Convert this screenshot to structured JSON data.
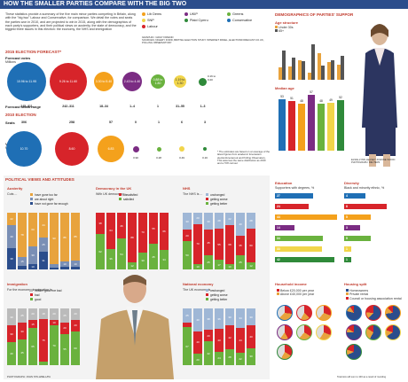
{
  "header": {
    "title": "HOW THE SMALLER PARTIES COMPARE WITH THE BIG TWO"
  },
  "intro": "These statistics provide a summary of the five main minor parties competing in Britain, along with the \"big two\" Labour and Conservative, for comparison. We detail the votes and seats the parties won in 2010, and are projected to win in 2015, along with the demographics of each party's supporters, and their political views on austerity, the state of democracy, and the biggest three issues in this election: the economy, the NHS and immigration",
  "legend": {
    "parties": [
      {
        "name": "Lib Dems",
        "color": "#f4a11c"
      },
      {
        "name": "UKIP",
        "color": "#7b2c83"
      },
      {
        "name": "Greens",
        "color": "#6ab23e"
      },
      {
        "name": "SNP",
        "color": "#f1d54a"
      },
      {
        "name": "Plaid Cymru",
        "color": "#2f8a3a"
      },
      {
        "name": "Conservative",
        "color": "#1f6fb5"
      },
      {
        "name": "Labour",
        "color": "#d7242a"
      }
    ],
    "graphic": "GRAPHIC: GRAY FRIEND",
    "sources": "SOURCES: NIGERY FORD, BRITISH ELECTION STUDY INTERNET PANEL, ELECTIONFORECAST.CO.UK, POLLING OBSERVATORY"
  },
  "forecast": {
    "heading": "2015 ELECTION FORECAST*",
    "votes_label": "Forecast votes",
    "votes_unit": "Millions",
    "seats_label": "Forecast seats range",
    "circles": [
      {
        "text": "10.96 to 11.95",
        "color": "#1f6fb5"
      },
      {
        "text": "9.26 to 11.60",
        "color": "#d7242a"
      },
      {
        "text": "3.30 to 5.40",
        "color": "#f4a11c"
      },
      {
        "text": "2.43 to 4.40",
        "color": "#7b2c83"
      },
      {
        "text": "0.88 to 1.80",
        "color": "#6ab23e"
      },
      {
        "text": "1.19 to 1.30",
        "color": "#f1d54a"
      },
      {
        "text": "0.16 to 0.20",
        "color": "#2f8a3a"
      }
    ],
    "seats": [
      "245–311",
      "242–311",
      "18–34",
      "1–4",
      "1",
      "31–55",
      "1–3"
    ]
  },
  "election2010": {
    "heading": "2010 ELECTION",
    "seats_label": "Seats",
    "votes_label": "Votes",
    "votes_unit": "Millions",
    "seats": [
      "306",
      "258",
      "57",
      "0",
      "1",
      "6",
      "3"
    ],
    "circles": [
      {
        "text": "10.70",
        "color": "#1f6fb5"
      },
      {
        "text": "8.60",
        "color": "#d7242a"
      },
      {
        "text": "6.83",
        "color": "#f4a11c"
      },
      {
        "text": "0.90",
        "color": "#7b2c83"
      },
      {
        "text": "0.28",
        "color": "#6ab23e"
      },
      {
        "text": "0.49",
        "color": "#f1d54a"
      },
      {
        "text": "0.16",
        "color": "#2f8a3a"
      }
    ],
    "footnote": "* The estimates are based on an average of the latest figures from academic forecasters electionforecast.uk and Polling Observatory. This assumes the same distribution as 2010 and a 70% turnout"
  },
  "demographics": {
    "heading": "DEMOGRAPHICS OF PARTIES' SUPPORTERS",
    "age_title": "Age structure",
    "age_legend": [
      "Under 30s",
      "65+"
    ],
    "median_title": "Median age",
    "median_values": [
      "53",
      "51",
      "48",
      "57",
      "48",
      "49",
      "52"
    ],
    "photo_caption": "ELSIE-LYNN LEASE? JOANNE WOOD",
    "photo_credit": "PHOTOGRAPH: REUTERS"
  },
  "political": {
    "heading": "POLITICAL VIEWS AND ATTITUDES",
    "austerity": {
      "title": "Austerity",
      "q": "Cuts ...",
      "legend": [
        "have gone too far",
        "are about right",
        "have not gone far enough"
      ]
    },
    "democracy": {
      "title": "Democracy in the UK",
      "q": "With UK democracy ...",
      "legend": [
        "dissatisfied",
        "satisfied"
      ]
    },
    "nhs": {
      "title": "NHS",
      "q": "The NHS is ...",
      "legend": [
        "unchanged",
        "getting worse",
        "getting better"
      ]
    },
    "immigration": {
      "title": "Immigration",
      "q": "For the economy, immigration is ...",
      "legend": [
        "neither good nor bad",
        "bad",
        "good"
      ]
    },
    "economy": {
      "title": "National economy",
      "q": "The UK economy is ...",
      "legend": [
        "unchanged",
        "getting worse",
        "getting better"
      ]
    },
    "photo_credit": "PHOTOGRAPH: JOHN STILLWELL/PA",
    "pct": "%"
  },
  "education": {
    "title": "Education",
    "sub": "Supporters with degrees, %",
    "values": [
      "27",
      "24",
      "44",
      "14",
      "34",
      "33",
      "42"
    ]
  },
  "diversity": {
    "title": "Diversity",
    "sub": "Black and minority ethnic, %",
    "values": [
      "4",
      "8",
      "5",
      "3",
      "5",
      "1",
      "1"
    ]
  },
  "income": {
    "title": "Household income",
    "legend": [
      "Below £20,000 per year",
      "Above £40,000 per year"
    ]
  },
  "housing": {
    "title": "Housing split",
    "legend": [
      "Homeowners",
      "Private rental",
      "Council or housing association rental"
    ]
  },
  "note": "Total size will sum to 100 as a result of rounding"
}
